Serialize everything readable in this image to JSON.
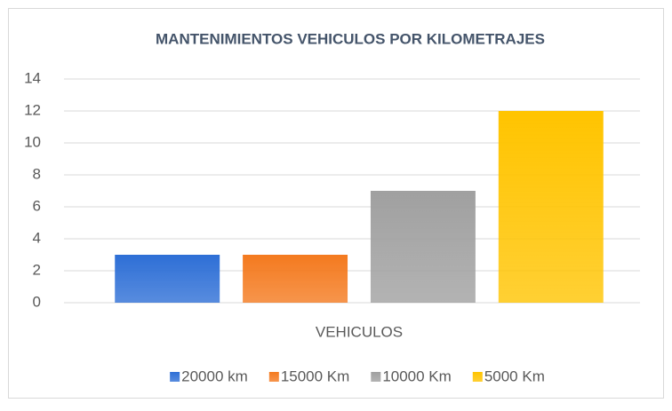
{
  "chart_data": {
    "type": "bar",
    "title": "MANTENIMIENTOS VEHICULOS POR KILOMETRAJES",
    "categories": [
      "VEHICULOS"
    ],
    "series": [
      {
        "name": "20000 km",
        "color": "#2e6fd6",
        "values": [
          3
        ]
      },
      {
        "name": "15000 Km",
        "color": "#f47a1f",
        "values": [
          3
        ]
      },
      {
        "name": "10000 Km",
        "color": "#a0a0a0",
        "values": [
          7
        ]
      },
      {
        "name": "5000 Km",
        "color": "#ffc400",
        "values": [
          12
        ]
      }
    ],
    "ylim": [
      0,
      14
    ],
    "yticks": [
      0,
      2,
      4,
      6,
      8,
      10,
      12,
      14
    ],
    "grid": true,
    "legend": "bottom"
  }
}
